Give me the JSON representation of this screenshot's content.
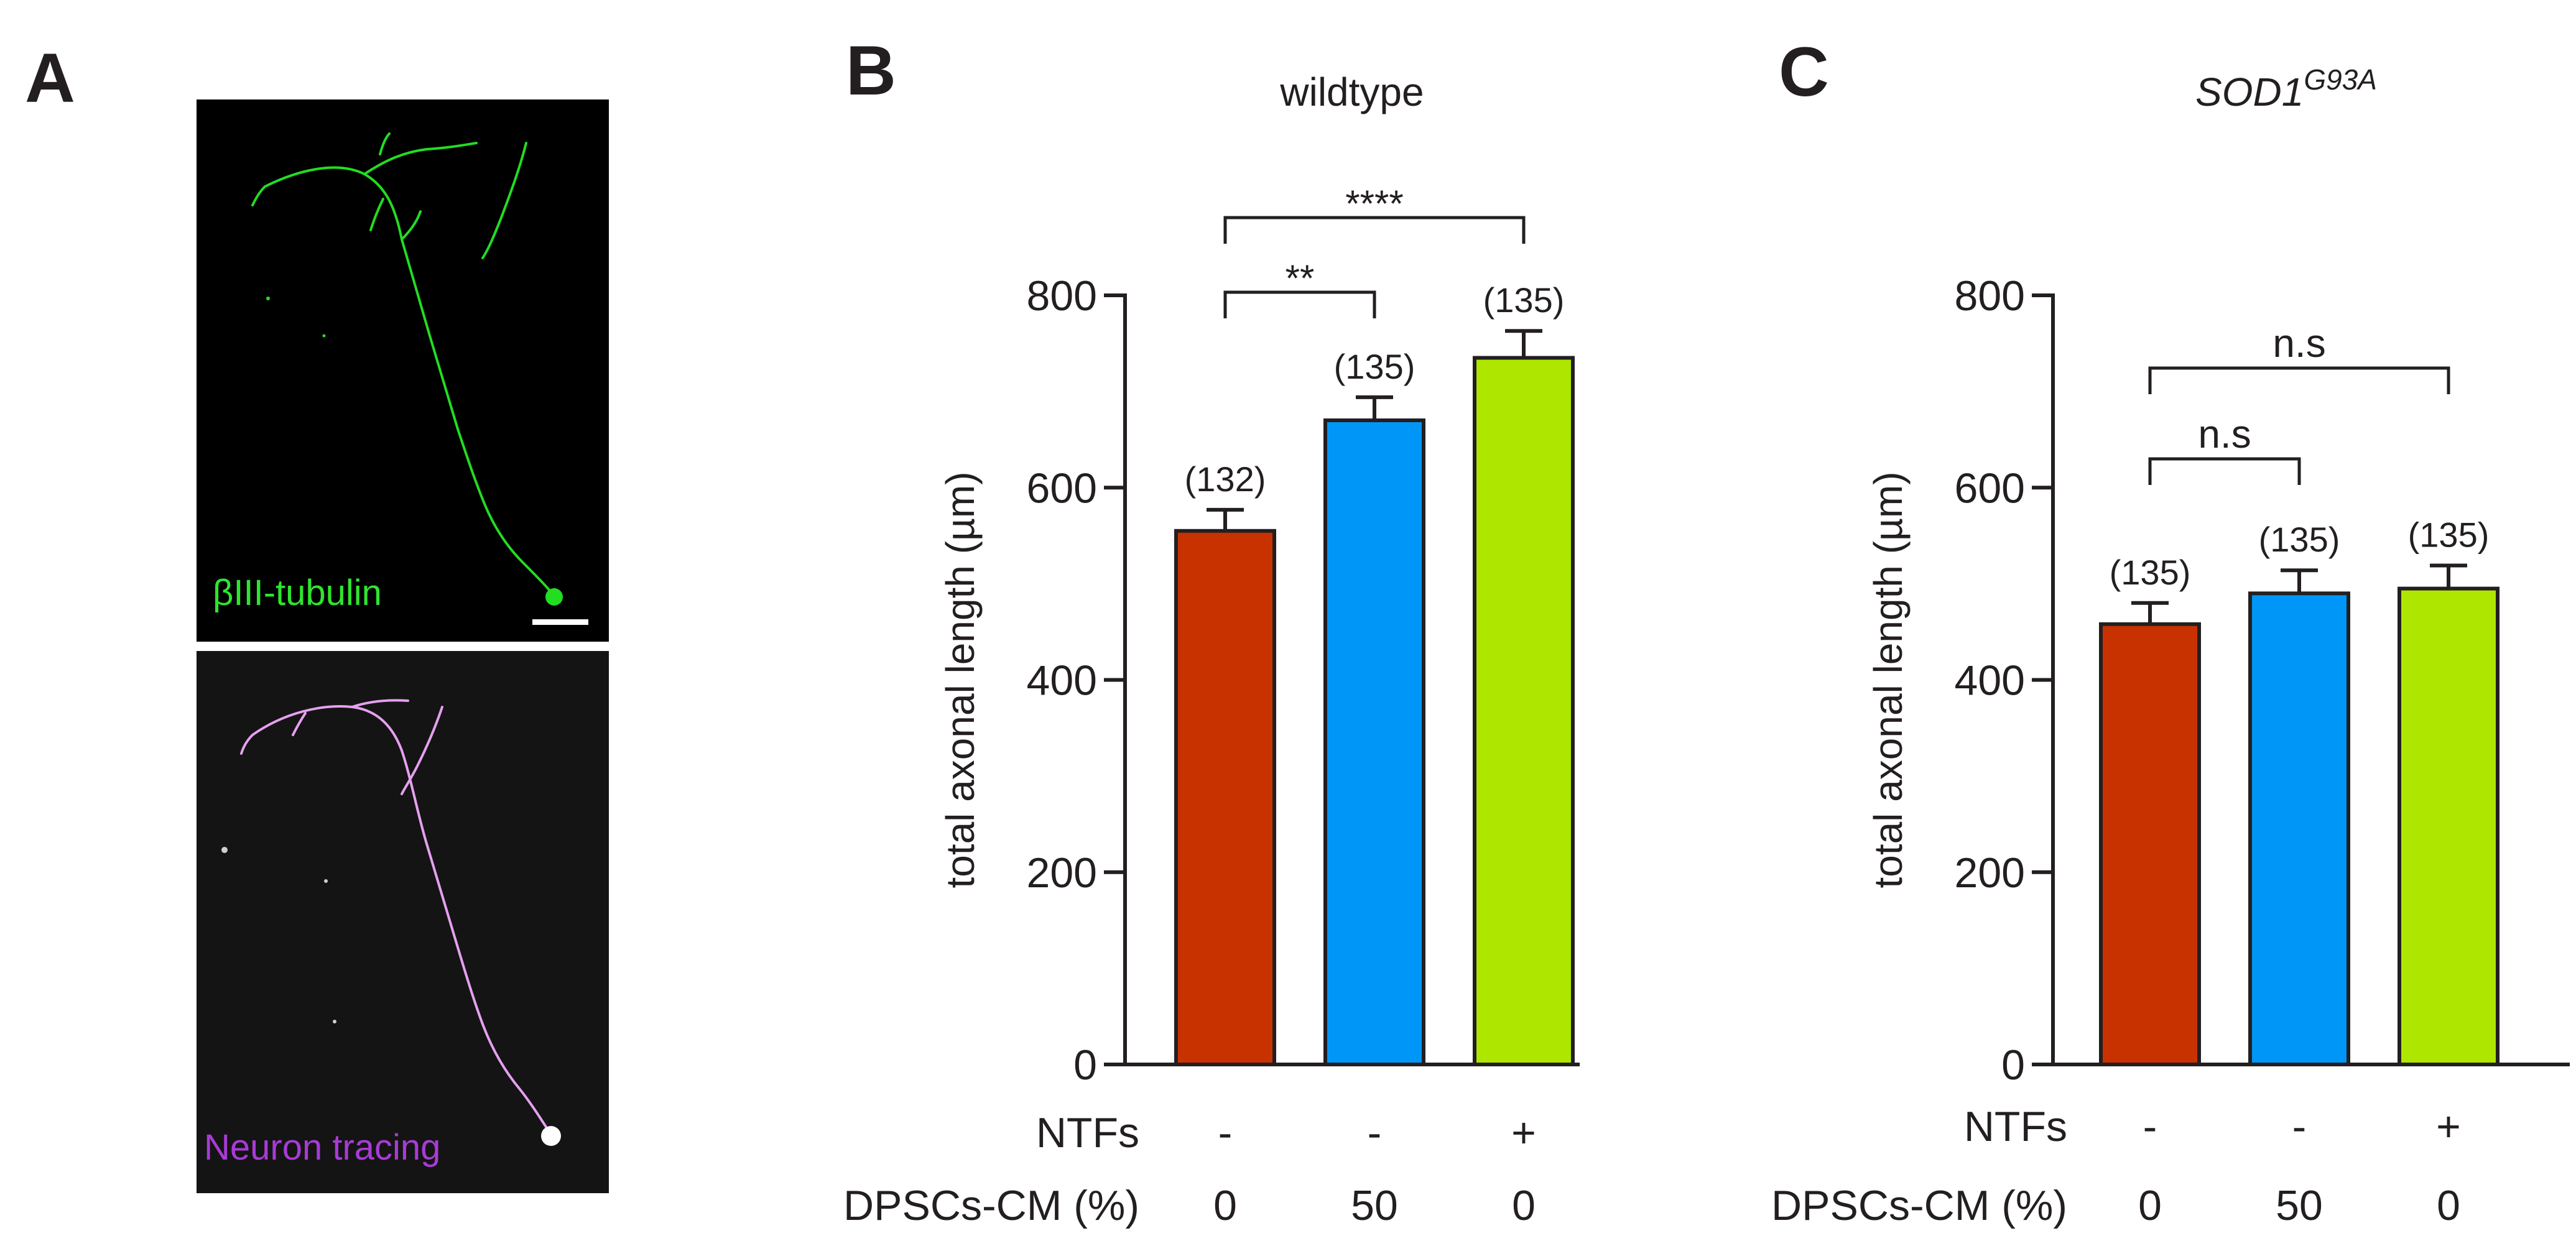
{
  "panels": {
    "a": {
      "letter": "A",
      "top_image_label": "βIII-tubulin",
      "bottom_image_label": "Neuron tracing",
      "top_label_color": "#2ee52e",
      "bottom_label_color": "#a83bd6",
      "tubulin_color": "#22dd22",
      "tracing_color": "#e6a0f0"
    },
    "b": {
      "letter": "B"
    },
    "c": {
      "letter": "C"
    }
  },
  "row_labels": {
    "ntfs": "NTFs",
    "dpscs_cm": "DPSCs-CM (%)"
  },
  "chart_data": [
    {
      "type": "bar",
      "panel": "B",
      "title": "wildtype",
      "ylabel": "total axonal length (µm)",
      "ylim": [
        0,
        800
      ],
      "yticks": [
        0,
        200,
        400,
        600,
        800
      ],
      "categories": [
        "0% CM, NTFs -",
        "50% CM, NTFs -",
        "0% CM, NTFs +"
      ],
      "values": [
        555,
        670,
        735
      ],
      "errors": [
        22,
        24,
        28
      ],
      "n_labels": [
        "(132)",
        "(135)",
        "(135)"
      ],
      "colors": [
        "#c83200",
        "#0096f8",
        "#aee600"
      ],
      "ntfs": [
        "-",
        "-",
        "+"
      ],
      "dpscs_cm": [
        "0",
        "50",
        "0"
      ],
      "significance": [
        {
          "from": 0,
          "to": 1,
          "label": "**"
        },
        {
          "from": 0,
          "to": 2,
          "label": "****"
        }
      ]
    },
    {
      "type": "bar",
      "panel": "C",
      "title": "SOD1",
      "title_superscript": "G93A",
      "ylabel": "total axonal length (µm)",
      "ylim": [
        0,
        800
      ],
      "yticks": [
        0,
        200,
        400,
        600,
        800
      ],
      "categories": [
        "0% CM, NTFs -",
        "50% CM, NTFs -",
        "0% CM, NTFs +"
      ],
      "values": [
        458,
        490,
        495
      ],
      "errors": [
        22,
        24,
        24
      ],
      "n_labels": [
        "(135)",
        "(135)",
        "(135)"
      ],
      "colors": [
        "#c83200",
        "#0096f8",
        "#aee600"
      ],
      "ntfs": [
        "-",
        "-",
        "+"
      ],
      "dpscs_cm": [
        "0",
        "50",
        "0"
      ],
      "significance": [
        {
          "from": 0,
          "to": 1,
          "label": "n.s"
        },
        {
          "from": 0,
          "to": 2,
          "label": "n.s"
        }
      ]
    }
  ]
}
